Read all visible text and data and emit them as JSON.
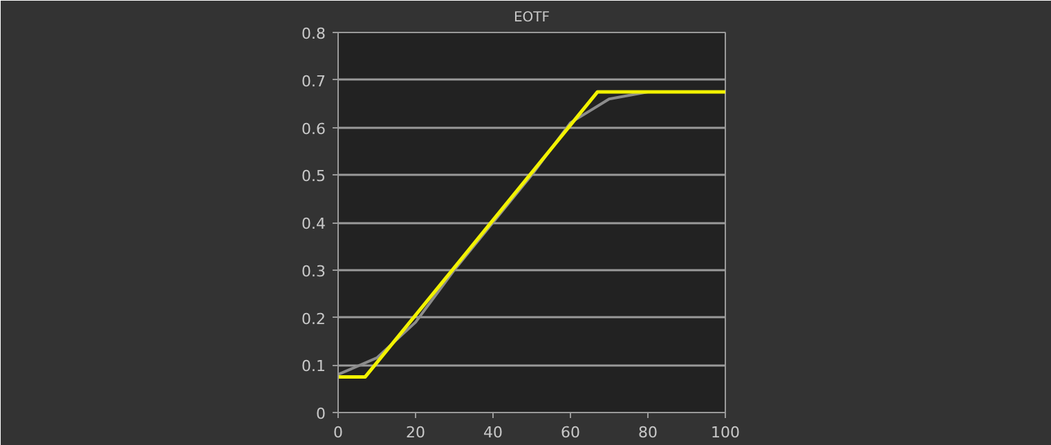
{
  "chart_data": {
    "type": "line",
    "title": "EOTF",
    "xlim": [
      0,
      100
    ],
    "ylim": [
      0,
      0.8
    ],
    "xticks": [
      0,
      20,
      40,
      60,
      80,
      100
    ],
    "yticks": [
      0,
      0.1,
      0.2,
      0.3,
      0.4,
      0.5,
      0.6,
      0.7,
      0.8
    ],
    "grid": "y",
    "marker": "none",
    "line_style": "solid",
    "series": [
      {
        "color": "#8c8c8c",
        "x": [
          0,
          10,
          20,
          30,
          40,
          50,
          60,
          70,
          80,
          100
        ],
        "values": [
          0.08,
          0.115,
          0.19,
          0.3,
          0.4,
          0.5,
          0.61,
          0.66,
          0.675,
          0.675
        ]
      },
      {
        "color": "#f2f200",
        "x": [
          0,
          7,
          67,
          100
        ],
        "values": [
          0.075,
          0.075,
          0.675,
          0.675
        ]
      }
    ]
  }
}
